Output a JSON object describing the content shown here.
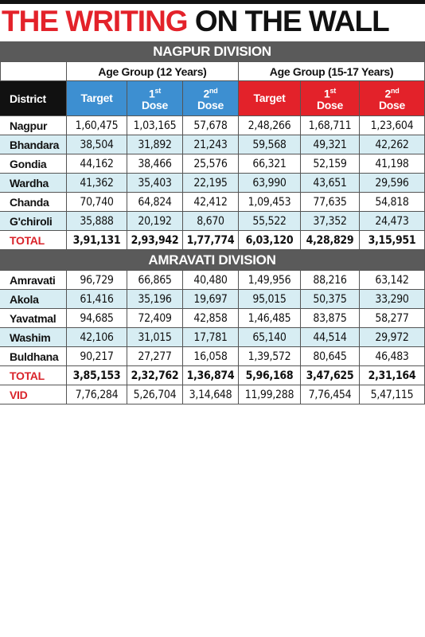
{
  "header": {
    "title_red": "THE WRITING",
    "title_black": "ON THE WALL"
  },
  "table": {
    "district_header": "District",
    "groups": [
      {
        "label": "Age Group (12 Years)",
        "cols": [
          {
            "word": "Target"
          },
          {
            "num": "1",
            "sup": "st",
            "word": "Dose"
          },
          {
            "num": "2",
            "sup": "nd",
            "word": "Dose"
          }
        ]
      },
      {
        "label": "Age Group (15-17 Years)",
        "cols": [
          {
            "word": "Target"
          },
          {
            "num": "1",
            "sup": "st",
            "word": "Dose"
          },
          {
            "num": "2",
            "sup": "nd",
            "word": "Dose"
          }
        ]
      }
    ],
    "divisions": [
      {
        "name": "NAGPUR DIVISION",
        "rows": [
          [
            "Nagpur",
            "1,60,475",
            "1,03,165",
            "57,678",
            "2,48,266",
            "1,68,711",
            "1,23,604"
          ],
          [
            "Bhandara",
            "38,504",
            "31,892",
            "21,243",
            "59,568",
            "49,321",
            "42,262"
          ],
          [
            "Gondia",
            "44,162",
            "38,466",
            "25,576",
            "66,321",
            "52,159",
            "41,198"
          ],
          [
            "Wardha",
            "41,362",
            "35,403",
            "22,195",
            "63,990",
            "43,651",
            "29,596"
          ],
          [
            "Chanda",
            "70,740",
            "64,824",
            "42,412",
            "1,09,453",
            "77,635",
            "54,818"
          ],
          [
            "G'chiroli",
            "35,888",
            "20,192",
            "8,670",
            "55,522",
            "37,352",
            "24,473"
          ]
        ],
        "total": [
          "TOTAL",
          "3,91,131",
          "2,93,942",
          "1,77,774",
          "6,03,120",
          "4,28,829",
          "3,15,951"
        ]
      },
      {
        "name": "AMRAVATI DIVISION",
        "rows": [
          [
            "Amravati",
            "96,729",
            "66,865",
            "40,480",
            "1,49,956",
            "88,216",
            "63,142"
          ],
          [
            "Akola",
            "61,416",
            "35,196",
            "19,697",
            "95,015",
            "50,375",
            "33,290"
          ],
          [
            "Yavatmal",
            "94,685",
            "72,409",
            "42,858",
            "1,46,485",
            "83,875",
            "58,277"
          ],
          [
            "Washim",
            "42,106",
            "31,015",
            "17,781",
            "65,140",
            "44,514",
            "29,972"
          ],
          [
            "Buldhana",
            "90,217",
            "27,277",
            "16,058",
            "1,39,572",
            "80,645",
            "46,483"
          ]
        ],
        "total": [
          "TOTAL",
          "3,85,153",
          "2,32,762",
          "1,36,874",
          "5,96,168",
          "3,47,625",
          "2,31,164"
        ]
      }
    ],
    "vid": [
      "VID",
      "7,76,284",
      "5,26,704",
      "3,14,648",
      "11,99,288",
      "7,76,454",
      "5,47,115"
    ]
  }
}
